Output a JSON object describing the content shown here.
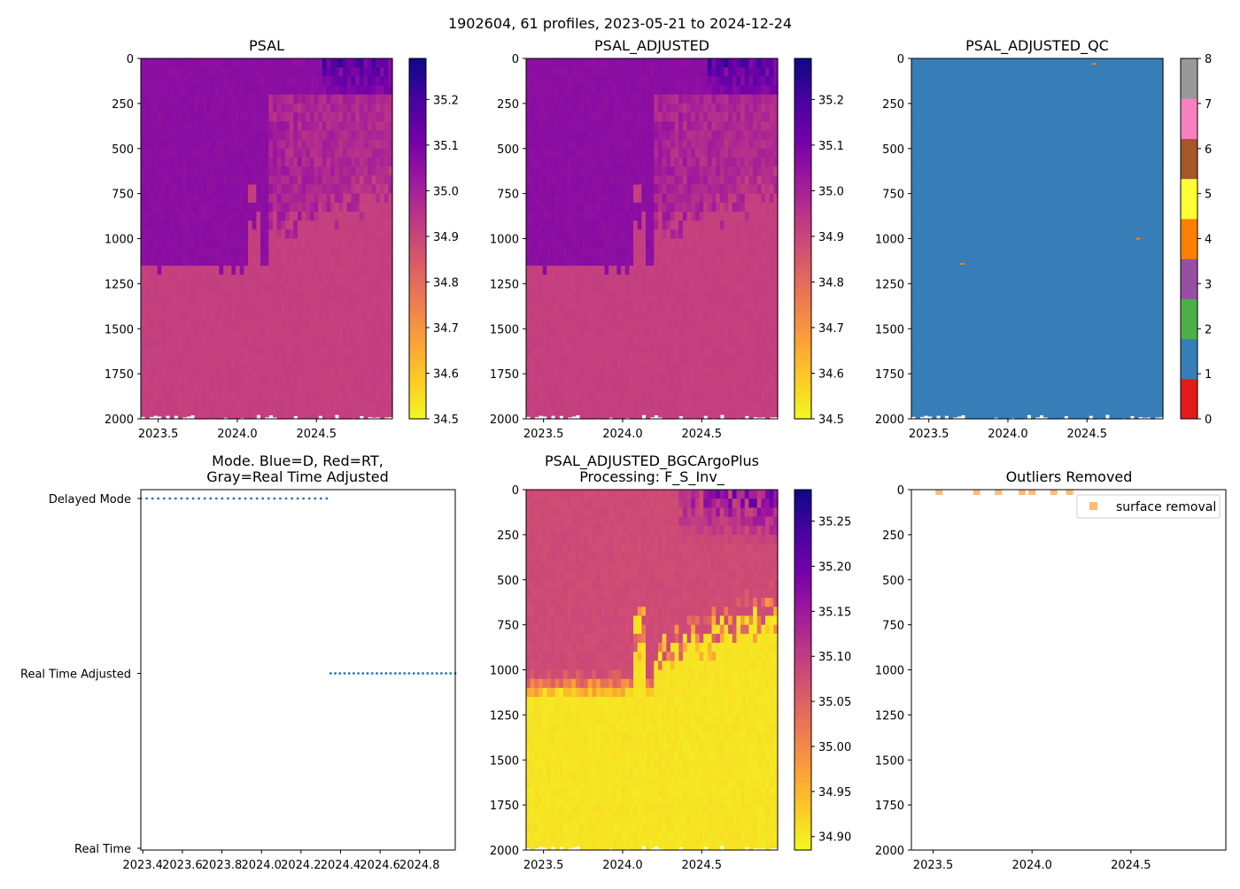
{
  "figure_title": "1902604, 61 profiles, 2023-05-21 to 2024-12-24",
  "colors": {
    "plasma": [
      "#0d0887",
      "#46039f",
      "#7201a8",
      "#9c179e",
      "#bd3786",
      "#d8576b",
      "#ed7953",
      "#fb9f3a",
      "#fdca26",
      "#f0f921"
    ],
    "qc": [
      "#e41a1c",
      "#377eb8",
      "#4daf4a",
      "#984ea3",
      "#ff7f00",
      "#ffff33",
      "#a65628",
      "#f781bf",
      "#999999"
    ],
    "mode_series": "#1f77b4",
    "outlier": "#ffbb78"
  },
  "chart_data": [
    {
      "id": "psal",
      "type": "heatmap",
      "title": "PSAL",
      "x_range": [
        2023.39,
        2024.98
      ],
      "y_range": [
        2000,
        0
      ],
      "y_ticks": [
        "0",
        "250",
        "500",
        "750",
        "1000",
        "1250",
        "1500",
        "1750",
        "2000"
      ],
      "x_ticks": [
        "2023.5",
        "2024.0",
        "2024.5"
      ],
      "colorbar": {
        "range": [
          34.5,
          35.29
        ],
        "ticks": [
          "34.5",
          "34.6",
          "34.7",
          "34.8",
          "34.9",
          "35.0",
          "35.1",
          "35.2"
        ],
        "colormap": "plasma"
      },
      "layers": {
        "surface": 35.04,
        "intermediate": 35.06,
        "deep": 34.915,
        "transition_depth_m": 1150
      }
    },
    {
      "id": "psal_adjusted",
      "type": "heatmap",
      "title": "PSAL_ADJUSTED",
      "x_range": [
        2023.39,
        2024.98
      ],
      "y_range": [
        2000,
        0
      ],
      "y_ticks": [
        "0",
        "250",
        "500",
        "750",
        "1000",
        "1250",
        "1500",
        "1750",
        "2000"
      ],
      "x_ticks": [
        "2023.5",
        "2024.0",
        "2024.5"
      ],
      "colorbar": {
        "range": [
          34.5,
          35.29
        ],
        "ticks": [
          "34.5",
          "34.6",
          "34.7",
          "34.8",
          "34.9",
          "35.0",
          "35.1",
          "35.2"
        ],
        "colormap": "plasma"
      },
      "layers": {
        "surface": 35.04,
        "intermediate": 35.06,
        "deep": 34.915,
        "transition_depth_m": 1150
      }
    },
    {
      "id": "psal_adjusted_qc",
      "type": "heatmap",
      "title": "PSAL_ADJUSTED_QC",
      "x_range": [
        2023.39,
        2024.98
      ],
      "y_range": [
        2000,
        0
      ],
      "y_ticks": [
        "0",
        "250",
        "500",
        "750",
        "1000",
        "1250",
        "1500",
        "1750",
        "2000"
      ],
      "x_ticks": [
        "2023.5",
        "2024.0",
        "2024.5"
      ],
      "colorbar": {
        "range": [
          0,
          8
        ],
        "ticks": [
          "0",
          "1",
          "2",
          "3",
          "4",
          "5",
          "6",
          "7",
          "8"
        ],
        "colormap": "qc"
      },
      "dominant_flag": 1,
      "flagged_cells": [
        {
          "x": 2024.54,
          "depth": 30,
          "flag": 4
        },
        {
          "x": 2023.71,
          "depth": 1140,
          "flag": 4
        },
        {
          "x": 2024.82,
          "depth": 1000,
          "flag": 4
        }
      ]
    },
    {
      "id": "mode",
      "type": "scatter",
      "title_line1": "Mode. Blue=D, Red=RT,",
      "title_line2": "Gray=Real Time Adjusted",
      "x_range": [
        2023.39,
        2024.98
      ],
      "x_ticks": [
        "2023.4",
        "2023.6",
        "2023.8",
        "2024.0",
        "2024.2",
        "2024.4",
        "2024.6",
        "2024.8"
      ],
      "y_categories": [
        "Real Time",
        "Real Time Adjusted",
        "Delayed Mode"
      ],
      "series": [
        {
          "name": "Delayed Mode",
          "x_start": 2023.39,
          "x_end": 2024.33,
          "count": 33
        },
        {
          "name": "Real Time Adjusted",
          "x_start": 2024.35,
          "x_end": 2024.98,
          "count": 28
        }
      ]
    },
    {
      "id": "psal_bgc",
      "type": "heatmap",
      "title_line1": "PSAL_ADJUSTED_BGCArgoPlus",
      "title_line2": "Processing: F_S_Inv_",
      "x_range": [
        2023.39,
        2024.98
      ],
      "y_range": [
        2000,
        0
      ],
      "y_ticks": [
        "0",
        "250",
        "500",
        "750",
        "1000",
        "1250",
        "1500",
        "1750",
        "2000"
      ],
      "x_ticks": [
        "2023.5",
        "2024.0",
        "2024.5"
      ],
      "colorbar": {
        "range": [
          34.885,
          35.285
        ],
        "ticks": [
          "34.90",
          "34.95",
          "35.00",
          "35.05",
          "35.10",
          "35.15",
          "35.20",
          "35.25"
        ],
        "colormap": "plasma"
      },
      "layers": {
        "surface": 35.08,
        "deep": 34.9,
        "transition_depth_m": 1150
      }
    },
    {
      "id": "outliers",
      "type": "scatter",
      "title": "Outliers Removed",
      "x_range": [
        2023.39,
        2024.98
      ],
      "y_range": [
        2000,
        0
      ],
      "y_ticks": [
        "0",
        "250",
        "500",
        "750",
        "1000",
        "1250",
        "1500",
        "1750",
        "2000"
      ],
      "x_ticks": [
        "2023.5",
        "2024.0",
        "2024.5"
      ],
      "legend": "surface removal",
      "points": [
        {
          "x": 2023.53,
          "y": 5
        },
        {
          "x": 2023.72,
          "y": 5
        },
        {
          "x": 2023.83,
          "y": 5
        },
        {
          "x": 2023.95,
          "y": 5
        },
        {
          "x": 2024.0,
          "y": 5
        },
        {
          "x": 2024.11,
          "y": 5
        },
        {
          "x": 2024.19,
          "y": 5
        }
      ]
    }
  ]
}
